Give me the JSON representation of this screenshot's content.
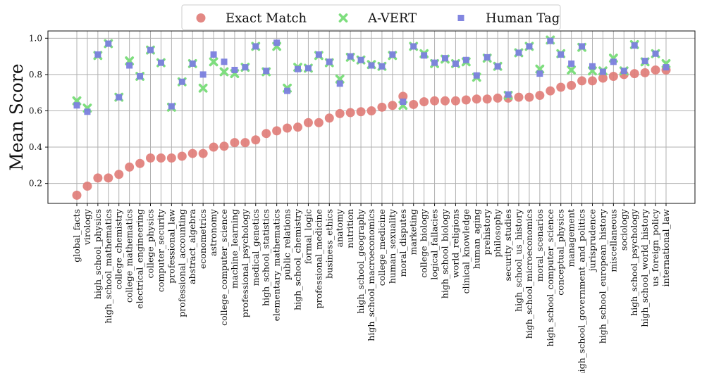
{
  "chart_data": {
    "type": "scatter",
    "title": "",
    "xlabel": "",
    "ylabel": "Mean Score",
    "ylim": [
      0.09,
      1.04
    ],
    "yticks": [
      "0.2",
      "0.4",
      "0.6",
      "0.8",
      "1.0"
    ],
    "ytick_values": [
      0.2,
      0.4,
      0.6,
      0.8,
      1.0
    ],
    "grid": true,
    "legend_position": "top-center",
    "categories": [
      "global_facts",
      "virology",
      "high_school_physics",
      "high_school_mathematics",
      "college_chemistry",
      "college_mathematics",
      "electrical_engineering",
      "college_physics",
      "computer_security",
      "professional_law",
      "professional_accounting",
      "abstract_algebra",
      "econometrics",
      "astronomy",
      "college_computer_science",
      "machine_learning",
      "professional_psychology",
      "medical_genetics",
      "high_school_statistics",
      "elementary_mathematics",
      "public_relations",
      "high_school_chemistry",
      "formal_logic",
      "professional_medicine",
      "business_ethics",
      "anatomy",
      "nutrition",
      "high_school_geography",
      "high_school_macroeconomics",
      "college_medicine",
      "human_sexuality",
      "moral_disputes",
      "marketing",
      "college_biology",
      "logical_fallacies",
      "high_school_biology",
      "world_religions",
      "clinical_knowledge",
      "human_aging",
      "prehistory",
      "philosophy",
      "security_studies",
      "high_school_us_history",
      "high_school_microeconomics",
      "moral_scenarios",
      "high_school_computer_science",
      "conceptual_physics",
      "management",
      "high_school_government_and_politics",
      "jurisprudence",
      "high_school_european_history",
      "miscellaneous",
      "sociology",
      "high_school_psychology",
      "high_school_world_history",
      "us_foreign_policy",
      "international_law"
    ],
    "series": [
      {
        "name": "Exact Match",
        "marker": "circle",
        "color": "#e07b77",
        "values": [
          0.135,
          0.185,
          0.23,
          0.23,
          0.25,
          0.29,
          0.31,
          0.34,
          0.34,
          0.34,
          0.35,
          0.365,
          0.365,
          0.4,
          0.405,
          0.425,
          0.425,
          0.44,
          0.475,
          0.49,
          0.505,
          0.51,
          0.535,
          0.535,
          0.56,
          0.585,
          0.59,
          0.595,
          0.6,
          0.62,
          0.63,
          0.68,
          0.635,
          0.65,
          0.655,
          0.655,
          0.655,
          0.66,
          0.665,
          0.665,
          0.67,
          0.67,
          0.675,
          0.675,
          0.685,
          0.71,
          0.73,
          0.74,
          0.765,
          0.765,
          0.78,
          0.79,
          0.8,
          0.805,
          0.81,
          0.825,
          0.825
        ]
      },
      {
        "name": "A-VERT",
        "marker": "x",
        "color": "#7ede7e",
        "values": [
          0.655,
          0.615,
          0.905,
          0.97,
          0.675,
          0.875,
          0.79,
          0.935,
          0.865,
          0.62,
          0.76,
          0.86,
          0.725,
          0.87,
          0.815,
          0.805,
          0.84,
          0.955,
          0.815,
          0.955,
          0.725,
          0.84,
          0.835,
          0.905,
          0.865,
          0.775,
          0.895,
          0.88,
          0.855,
          0.845,
          0.905,
          0.63,
          0.955,
          0.915,
          0.86,
          0.885,
          0.86,
          0.87,
          0.785,
          0.89,
          0.845,
          0.685,
          0.92,
          0.955,
          0.83,
          0.99,
          0.915,
          0.825,
          0.95,
          0.82,
          0.82,
          0.89,
          0.82,
          0.965,
          0.87,
          0.915,
          0.86
        ]
      },
      {
        "name": "Human Tag",
        "marker": "square",
        "color": "#7b7fde",
        "values": [
          0.63,
          0.595,
          0.91,
          0.97,
          0.675,
          0.85,
          0.79,
          0.935,
          0.865,
          0.625,
          0.76,
          0.86,
          0.8,
          0.91,
          0.87,
          0.825,
          0.84,
          0.955,
          0.82,
          0.975,
          0.71,
          0.83,
          0.835,
          0.91,
          0.87,
          0.75,
          0.9,
          0.88,
          0.85,
          0.845,
          0.91,
          0.65,
          0.955,
          0.905,
          0.865,
          0.89,
          0.86,
          0.88,
          0.795,
          0.895,
          0.845,
          0.69,
          0.92,
          0.955,
          0.805,
          0.985,
          0.91,
          0.86,
          0.955,
          0.845,
          0.815,
          0.87,
          0.82,
          0.96,
          0.875,
          0.915,
          0.84
        ]
      }
    ]
  }
}
